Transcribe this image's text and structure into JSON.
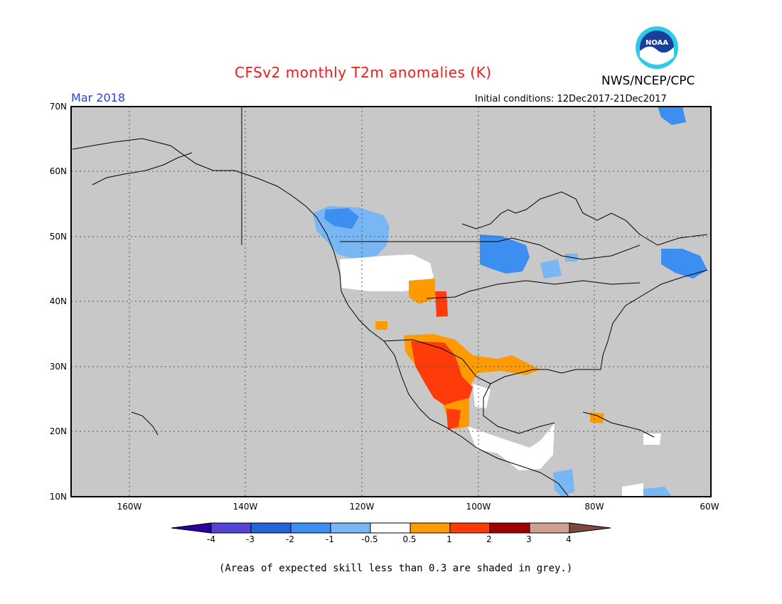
{
  "header": {
    "title": "CFSv2 monthly T2m anomalies (K)",
    "brand": "NWS/NCEP/CPC",
    "month": "Mar 2018",
    "initial_conditions": "Initial conditions: 12Dec2017-21Dec2017",
    "logo_text": "NOAA"
  },
  "map": {
    "lat_ticks": [
      "70N",
      "60N",
      "50N",
      "40N",
      "30N",
      "20N",
      "10N"
    ],
    "lon_ticks": [
      "160W",
      "140W",
      "120W",
      "100W",
      "80W",
      "60W"
    ]
  },
  "legend": {
    "labels": [
      "-4",
      "-3",
      "-2",
      "-1",
      "-0.5",
      "0.5",
      "1",
      "2",
      "3",
      "4"
    ],
    "colors": [
      "#2a00a0",
      "#5344d6",
      "#2366d6",
      "#3c8ff0",
      "#78b6f4",
      "#ffffff",
      "#ff9b00",
      "#ff3b0a",
      "#a00000",
      "#cfa090",
      "#7b4a3a"
    ]
  },
  "note": "(Areas of expected skill less than 0.3 are shaded in grey.)"
}
